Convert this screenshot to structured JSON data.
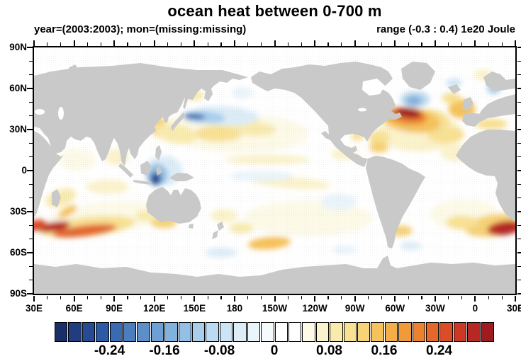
{
  "header": {
    "title": "ocean heat between 0-700 m",
    "subtitle_left": "year=(2003:2003); mon=(missing:missing)",
    "subtitle_right": "range (-0.3 : 0.4) 1e20 Joule"
  },
  "map": {
    "land_color": "#c9c9c9",
    "ocean_color": "#ffffff",
    "frame_color": "#000000"
  },
  "chart_data": {
    "type": "heatmap",
    "title": "ocean heat between 0-700 m",
    "annotation_left": "year=(2003:2003); mon=(missing:missing)",
    "annotation_right": "range (-0.3 : 0.4) 1e20 Joule",
    "units": "1e20 Joule",
    "value_range": [
      -0.3,
      0.4
    ],
    "projection": "cylindrical equidistant, Pacific-centered",
    "lon_domain_deg_east": [
      30,
      390
    ],
    "lat_domain": [
      -90,
      90
    ],
    "lon_tick_labels": [
      "30E",
      "60E",
      "90E",
      "120E",
      "150E",
      "180",
      "150W",
      "120W",
      "90W",
      "60W",
      "30W",
      "0",
      "30E"
    ],
    "lat_tick_labels": [
      "90N",
      "60N",
      "30N",
      "0",
      "30S",
      "60S",
      "90S"
    ],
    "minor_tick_step_deg": 10,
    "major_tick_step_deg": 30,
    "colorbar": {
      "min": -0.32,
      "step": 0.02,
      "labels": [
        "-0.24",
        "-0.16",
        "-0.08",
        "0",
        "0.08",
        "0.16",
        "0.24"
      ],
      "label_boundary_indices": [
        4,
        8,
        12,
        16,
        20,
        24,
        28
      ],
      "colors": [
        "#1a2f68",
        "#213d7d",
        "#274b92",
        "#2d59a5",
        "#3a6ab1",
        "#4b7ebe",
        "#5c8fca",
        "#6da0d4",
        "#81b1dd",
        "#95c0e5",
        "#a9ceec",
        "#bcdaf1",
        "#cde4f5",
        "#dcedf8",
        "#e9f4fb",
        "#f5fafd",
        "#ffffff",
        "#ffffff",
        "#fdfae8",
        "#fbf3cb",
        "#f9ebae",
        "#f8e193",
        "#f7d276",
        "#f6c25c",
        "#f4ae47",
        "#f19a39",
        "#ec8230",
        "#e4682a",
        "#d94e26",
        "#cb3825",
        "#b82823",
        "#9e1c20"
      ]
    },
    "feature_fields": [
      "lon_east",
      "lat",
      "rx_deg",
      "ry_deg",
      "rotate_deg",
      "anomaly_1e20_joule"
    ],
    "features": [
      [
        185,
        27,
        50,
        14,
        0,
        0.05
      ],
      [
        150,
        32,
        24,
        10,
        0,
        0.05
      ],
      [
        85,
        -34,
        46,
        11,
        -5,
        0.05
      ],
      [
        318,
        28,
        32,
        14,
        0,
        0.06
      ],
      [
        235,
        -35,
        48,
        13,
        0,
        0.05
      ],
      [
        352,
        -32,
        26,
        11,
        0,
        0.05
      ],
      [
        62,
        8,
        14,
        8,
        0,
        0.05
      ],
      [
        92,
        10,
        9,
        6,
        0,
        0.06
      ],
      [
        205,
        8,
        32,
        3.5,
        0,
        0.06
      ],
      [
        222,
        -9,
        30,
        4,
        4,
        0.07
      ],
      [
        85,
        -12,
        16,
        5,
        0,
        0.07
      ],
      [
        50,
        -20,
        12,
        6,
        -20,
        0.08
      ],
      [
        55,
        -30,
        8,
        3,
        -30,
        0.15
      ],
      [
        350,
        45,
        10,
        7,
        0,
        0.15
      ],
      [
        342,
        53,
        7,
        4,
        0,
        0.11
      ],
      [
        366,
        70,
        7,
        4,
        0,
        0.07
      ],
      [
        372,
        34,
        12,
        4,
        0,
        0.11
      ],
      [
        330,
        38,
        12,
        6,
        20,
        0.11
      ],
      [
        338,
        26,
        14,
        6,
        0,
        0.11
      ],
      [
        288,
        24,
        8,
        5,
        0,
        0.11
      ],
      [
        312,
        37,
        22,
        9,
        8,
        0.15
      ],
      [
        309,
        40,
        15,
        6,
        8,
        0.21
      ],
      [
        310,
        42,
        10,
        3.5,
        8,
        0.31
      ],
      [
        288,
        17,
        7,
        4,
        0,
        0.13
      ],
      [
        272,
        25,
        5,
        3,
        0,
        0.11
      ],
      [
        127,
        28,
        9,
        5,
        15,
        0.15
      ],
      [
        136,
        27,
        16,
        7,
        10,
        0.09
      ],
      [
        168,
        27,
        18,
        6,
        0,
        0.11
      ],
      [
        185,
        35,
        14,
        5,
        0,
        0.09
      ],
      [
        196,
        30,
        15,
        5,
        0,
        0.09
      ],
      [
        150,
        55,
        7,
        4,
        0,
        0.09
      ],
      [
        70,
        -41,
        36,
        7,
        -6,
        0.11
      ],
      [
        68,
        -44,
        24,
        4,
        -7,
        0.23
      ],
      [
        45,
        -41,
        12,
        3.5,
        -10,
        0.29
      ],
      [
        32,
        -40,
        8,
        4,
        -10,
        0.25
      ],
      [
        127,
        -38,
        10,
        4,
        0,
        0.13
      ],
      [
        113,
        -33,
        7,
        4,
        0,
        0.09
      ],
      [
        172,
        -33,
        10,
        5,
        0,
        0.07
      ],
      [
        206,
        -53,
        16,
        4.5,
        -5,
        0.15
      ],
      [
        374,
        -40,
        22,
        8,
        -8,
        0.13
      ],
      [
        382,
        -42,
        13,
        5,
        -8,
        0.29
      ],
      [
        350,
        -38,
        12,
        5,
        0,
        0.11
      ],
      [
        304,
        -44,
        9,
        4,
        0,
        0.13
      ],
      [
        345,
        13,
        11,
        6,
        0,
        0.06
      ],
      [
        262,
        12,
        10,
        4,
        0,
        0.06
      ],
      [
        185,
        -42,
        9,
        4,
        0,
        0.09
      ],
      [
        123,
        36,
        6,
        3,
        0,
        0.13
      ],
      [
        172,
        40,
        26,
        7,
        3,
        -0.05
      ],
      [
        157,
        39,
        16,
        4.5,
        3,
        -0.11
      ],
      [
        150,
        39.5,
        8,
        2.2,
        3,
        -0.23
      ],
      [
        127,
        0,
        14,
        11,
        0,
        -0.06
      ],
      [
        122,
        -3,
        8,
        8,
        0,
        -0.13
      ],
      [
        121,
        -6,
        4,
        4.5,
        0,
        -0.27
      ],
      [
        315,
        52,
        11,
        6,
        0,
        -0.09
      ],
      [
        314,
        51,
        6,
        3.5,
        0,
        -0.15
      ],
      [
        374,
        60,
        5,
        4,
        0,
        -0.11
      ],
      [
        344,
        64,
        6,
        3,
        0,
        -0.07
      ],
      [
        200,
        -4,
        24,
        3.5,
        0,
        -0.04
      ],
      [
        258,
        -23,
        13,
        6,
        0,
        -0.04
      ],
      [
        170,
        -60,
        12,
        3.5,
        0,
        -0.05
      ],
      [
        262,
        -58,
        9,
        3,
        0,
        -0.04
      ],
      [
        312,
        -55,
        8,
        3,
        0,
        -0.05
      ],
      [
        186,
        57,
        8,
        4,
        0,
        -0.04
      ]
    ]
  }
}
